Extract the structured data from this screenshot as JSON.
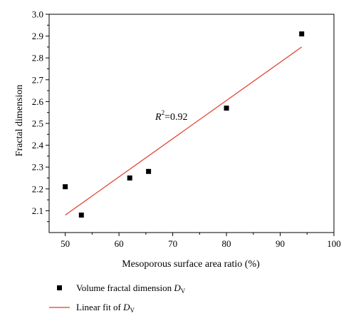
{
  "chart_data": {
    "type": "scatter",
    "xlabel": "Mesoporous surface area ratio (%)",
    "ylabel": "Fractal dimension",
    "xlim": [
      47,
      100
    ],
    "ylim": [
      2.0,
      3.0
    ],
    "x_ticks": [
      "50",
      "60",
      "70",
      "80",
      "90",
      "100"
    ],
    "y_ticks": [
      "2.1",
      "2.2",
      "2.3",
      "2.4",
      "2.5",
      "2.6",
      "2.7",
      "2.8",
      "2.9",
      "3.0"
    ],
    "series": [
      {
        "name": "Volume fractal dimension D_V",
        "marker": "square",
        "color": "#000000",
        "points": [
          {
            "x": 50,
            "y": 2.21
          },
          {
            "x": 53,
            "y": 2.08
          },
          {
            "x": 62,
            "y": 2.25
          },
          {
            "x": 65.5,
            "y": 2.28
          },
          {
            "x": 80,
            "y": 2.57
          },
          {
            "x": 94,
            "y": 2.91
          }
        ]
      },
      {
        "name": "Linear fit of D_V",
        "type": "line",
        "color": "#e03a2a",
        "points": [
          {
            "x": 50,
            "y": 2.08
          },
          {
            "x": 94,
            "y": 2.85
          }
        ]
      }
    ],
    "annotation": {
      "prefix": "R",
      "sup": "2",
      "suffix": "=0.92"
    },
    "grid": false,
    "legend_placement": "bottom-left, below chart"
  },
  "legend": {
    "item1": {
      "prefix": "Volume fractal dimension ",
      "var": "D",
      "sub": "V"
    },
    "item2": {
      "prefix": "Linear fit of ",
      "var": "D",
      "sub": "V"
    }
  }
}
